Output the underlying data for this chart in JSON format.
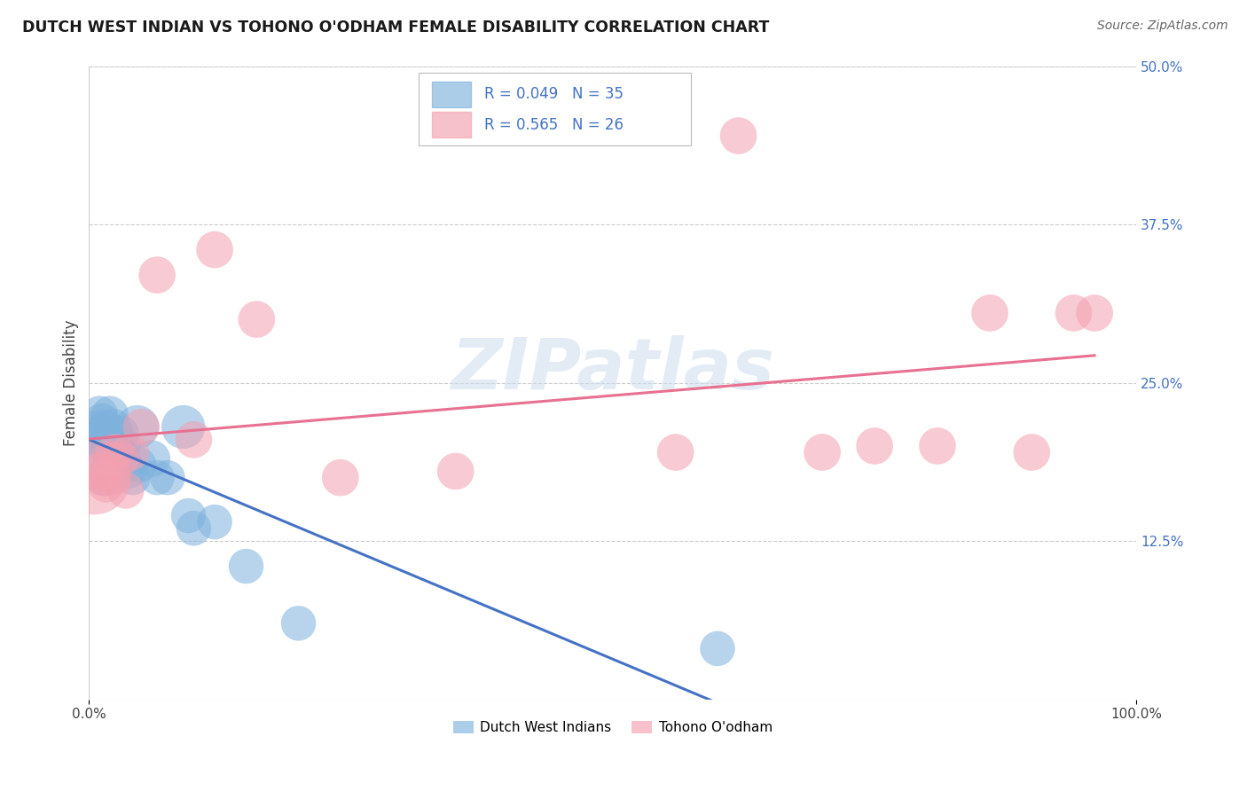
{
  "title": "DUTCH WEST INDIAN VS TOHONO O'ODHAM FEMALE DISABILITY CORRELATION CHART",
  "source": "Source: ZipAtlas.com",
  "ylabel": "Female Disability",
  "xlim": [
    0,
    1
  ],
  "ylim": [
    0,
    0.5
  ],
  "yticks": [
    0.125,
    0.25,
    0.375,
    0.5
  ],
  "ytick_labels": [
    "12.5%",
    "25.0%",
    "37.5%",
    "50.0%"
  ],
  "legend_labels": [
    "Dutch West Indians",
    "Tohono O'odham"
  ],
  "blue_R_text": "R = 0.049",
  "blue_N_text": "N = 35",
  "pink_R_text": "R = 0.565",
  "pink_N_text": "N = 26",
  "blue_color": "#7EB2DD",
  "pink_color": "#F4A0B0",
  "blue_line_color": "#4472C4",
  "pink_line_color": "#E87090",
  "legend_text_color": "#4472C4",
  "watermark": "ZIPatlas",
  "blue_scatter_x": [
    0.005,
    0.008,
    0.01,
    0.01,
    0.012,
    0.013,
    0.015,
    0.015,
    0.017,
    0.018,
    0.02,
    0.02,
    0.022,
    0.023,
    0.025,
    0.025,
    0.028,
    0.03,
    0.03,
    0.032,
    0.035,
    0.038,
    0.042,
    0.046,
    0.048,
    0.06,
    0.065,
    0.075,
    0.09,
    0.095,
    0.1,
    0.12,
    0.15,
    0.2,
    0.6
  ],
  "blue_scatter_y": [
    0.215,
    0.21,
    0.225,
    0.205,
    0.22,
    0.195,
    0.215,
    0.175,
    0.21,
    0.2,
    0.195,
    0.225,
    0.205,
    0.215,
    0.2,
    0.21,
    0.19,
    0.21,
    0.195,
    0.2,
    0.185,
    0.18,
    0.175,
    0.215,
    0.185,
    0.19,
    0.175,
    0.175,
    0.215,
    0.145,
    0.135,
    0.14,
    0.105,
    0.06,
    0.04
  ],
  "blue_scatter_size": [
    40,
    40,
    50,
    50,
    45,
    45,
    45,
    50,
    45,
    50,
    50,
    50,
    45,
    50,
    50,
    50,
    45,
    50,
    50,
    50,
    45,
    45,
    45,
    70,
    45,
    50,
    45,
    45,
    70,
    45,
    45,
    45,
    45,
    45,
    45
  ],
  "pink_scatter_x": [
    0.005,
    0.01,
    0.013,
    0.016,
    0.02,
    0.022,
    0.025,
    0.03,
    0.035,
    0.04,
    0.05,
    0.065,
    0.1,
    0.12,
    0.16,
    0.24,
    0.35,
    0.56,
    0.62,
    0.7,
    0.75,
    0.81,
    0.86,
    0.9,
    0.94,
    0.96
  ],
  "pink_scatter_y": [
    0.175,
    0.18,
    0.175,
    0.17,
    0.19,
    0.175,
    0.195,
    0.19,
    0.165,
    0.195,
    0.215,
    0.335,
    0.205,
    0.355,
    0.3,
    0.175,
    0.18,
    0.195,
    0.445,
    0.195,
    0.2,
    0.2,
    0.305,
    0.195,
    0.305,
    0.305
  ],
  "pink_scatter_size": [
    200,
    50,
    50,
    50,
    50,
    50,
    50,
    50,
    50,
    50,
    50,
    50,
    50,
    50,
    50,
    50,
    50,
    50,
    50,
    50,
    50,
    50,
    50,
    50,
    50,
    50
  ]
}
